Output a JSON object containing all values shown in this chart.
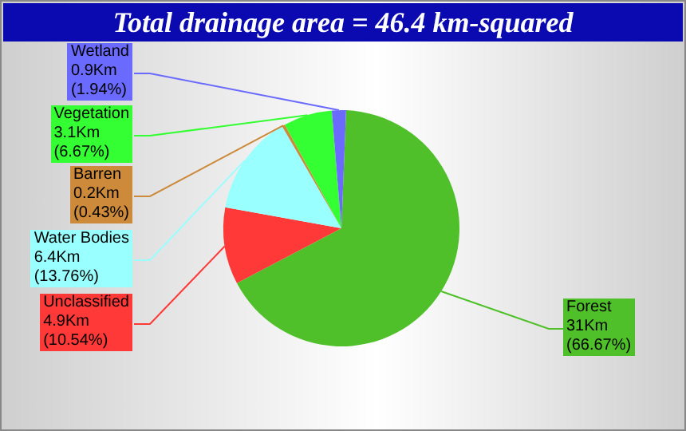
{
  "chart_data": {
    "type": "pie",
    "title": "Total drainage area = 46.4 km-squared",
    "categories": [
      "Forest",
      "Unclassified",
      "Water Bodies",
      "Barren",
      "Vegetation",
      "Wetland"
    ],
    "values": [
      31,
      4.9,
      6.4,
      0.2,
      3.1,
      0.9
    ],
    "value_labels": [
      "31Km\n(66.67%)",
      "4.9Km\n(10.54%)",
      "6.4Km\n(13.76%)",
      "0.2Km\n(0.43%)",
      "3.1Km\n(6.67%)",
      "0.9Km\n(1.94%)"
    ],
    "colors": [
      "#4fc02a",
      "#ff3838",
      "#99ffff",
      "#cc8a3a",
      "#33ff33",
      "#6a6aff"
    ]
  }
}
